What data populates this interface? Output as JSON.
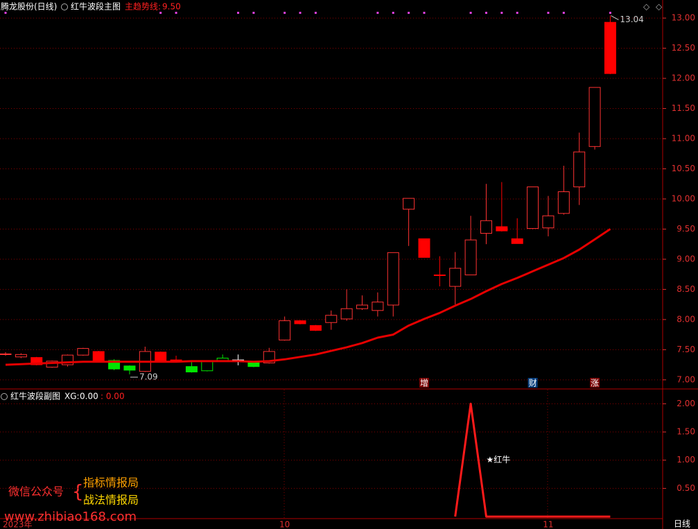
{
  "chart_data": [
    {
      "type": "candlestick",
      "stock": "腾龙股份(日线)",
      "title": "红牛波段主图",
      "categories": [
        "2023年",
        null,
        null,
        null,
        null,
        null,
        null,
        null,
        null,
        null,
        null,
        null,
        null,
        null,
        null,
        null,
        null,
        null,
        "10",
        null,
        null,
        null,
        null,
        null,
        null,
        null,
        null,
        null,
        null,
        null,
        null,
        null,
        null,
        null,
        null,
        "11",
        null,
        null,
        null,
        null
      ],
      "open": [
        7.43,
        7.38,
        7.37,
        7.21,
        7.25,
        7.41,
        7.47,
        7.32,
        7.23,
        7.14,
        7.46,
        7.33,
        7.22,
        7.15,
        7.31,
        7.33,
        7.3,
        7.28,
        7.66,
        7.98,
        7.9,
        7.95,
        8.01,
        8.18,
        8.15,
        8.24,
        9.83,
        9.34,
        8.74,
        8.55,
        8.74,
        9.43,
        9.54,
        9.34,
        9.51,
        9.52,
        9.76,
        10.2,
        10.87,
        12.93
      ],
      "high": [
        7.46,
        7.44,
        7.38,
        7.32,
        7.42,
        7.53,
        7.48,
        7.34,
        7.24,
        7.55,
        7.47,
        7.4,
        7.3,
        7.32,
        7.42,
        7.42,
        7.31,
        7.53,
        8.05,
        7.99,
        7.91,
        8.15,
        8.5,
        8.4,
        8.45,
        9.11,
        10.01,
        9.34,
        9.05,
        9.12,
        9.72,
        10.25,
        10.28,
        9.68,
        10.2,
        10.05,
        10.55,
        11.1,
        11.85,
        13.04
      ],
      "low": [
        7.4,
        7.36,
        7.24,
        7.2,
        7.22,
        7.4,
        7.29,
        7.16,
        7.09,
        7.13,
        7.3,
        7.29,
        7.12,
        7.14,
        7.3,
        7.24,
        7.21,
        7.27,
        7.65,
        7.92,
        7.81,
        7.83,
        7.98,
        8.16,
        8.05,
        8.05,
        9.22,
        9.03,
        8.55,
        8.25,
        8.74,
        9.25,
        9.46,
        9.26,
        9.5,
        9.38,
        9.74,
        9.9,
        10.82,
        12.07
      ],
      "close": [
        7.43,
        7.42,
        7.25,
        7.31,
        7.41,
        7.52,
        7.3,
        7.18,
        7.16,
        7.47,
        7.31,
        7.3,
        7.13,
        7.31,
        7.36,
        7.33,
        7.22,
        7.47,
        7.98,
        7.93,
        7.82,
        8.07,
        8.18,
        8.24,
        8.29,
        9.11,
        10.01,
        9.03,
        8.74,
        8.85,
        9.32,
        9.64,
        9.47,
        9.26,
        10.2,
        9.72,
        10.12,
        10.78,
        11.85,
        12.08
      ],
      "colors": [
        "#ff3232",
        "#ff3232",
        "#ff0000",
        "#ff3232",
        "#ff3232",
        "#ff3232",
        "#ff0000",
        "#00e600",
        "#00e600",
        "#ff3232",
        "#ff0000",
        "#ff0000",
        "#00e600",
        "#00e600",
        "#00e600",
        "#ffffff",
        "#00e600",
        "#ff3232",
        "#ff3232",
        "#ff0000",
        "#ff0000",
        "#ff3232",
        "#ff3232",
        "#ff3232",
        "#ff3232",
        "#ff3232",
        "#ff3232",
        "#ff0000",
        "#ff0000",
        "#ff3232",
        "#ff3232",
        "#ff3232",
        "#ff0000",
        "#ff0000",
        "#ff3232",
        "#ff3232",
        "#ff3232",
        "#ff3232",
        "#ff3232",
        "#ff0000"
      ],
      "filled": [
        false,
        false,
        true,
        false,
        false,
        false,
        true,
        true,
        true,
        false,
        true,
        true,
        true,
        false,
        false,
        false,
        true,
        false,
        false,
        true,
        true,
        false,
        false,
        false,
        false,
        false,
        false,
        true,
        true,
        false,
        false,
        false,
        true,
        true,
        false,
        false,
        false,
        false,
        false,
        true
      ],
      "series": [
        {
          "name": "主趋势线:",
          "color": "#e60000",
          "current_value": "9.50",
          "values": [
            7.25,
            7.26,
            7.27,
            7.28,
            7.29,
            7.3,
            7.3,
            7.3,
            7.3,
            7.3,
            7.3,
            7.3,
            7.31,
            7.31,
            7.31,
            7.31,
            7.3,
            7.31,
            7.34,
            7.38,
            7.42,
            7.48,
            7.54,
            7.61,
            7.7,
            7.75,
            7.9,
            8.01,
            8.11,
            8.23,
            8.34,
            8.47,
            8.59,
            8.69,
            8.8,
            8.91,
            9.02,
            9.16,
            9.33,
            9.5
          ]
        }
      ],
      "events": [
        null,
        null,
        null,
        null,
        null,
        null,
        null,
        null,
        null,
        null,
        null,
        null,
        null,
        null,
        null,
        null,
        null,
        null,
        null,
        null,
        null,
        null,
        null,
        null,
        null,
        null,
        null,
        "增",
        null,
        null,
        null,
        null,
        null,
        null,
        "财",
        null,
        null,
        null,
        "涨",
        null
      ],
      "ylim": [
        6.86,
        13.3
      ],
      "yticks": [
        {
          "value": 7,
          "label": "7.00"
        },
        {
          "value": 7.5,
          "label": "7.50"
        },
        {
          "value": 8,
          "label": "8.00"
        },
        {
          "value": 8.5,
          "label": "8.50"
        },
        {
          "value": 9,
          "label": "9.00"
        },
        {
          "value": 9.5,
          "label": "9.50"
        },
        {
          "value": 10,
          "label": "10.00"
        },
        {
          "value": 10.5,
          "label": "10.50"
        },
        {
          "value": 11,
          "label": "11.00"
        },
        {
          "value": 11.5,
          "label": "11.50"
        },
        {
          "value": 12,
          "label": "12.00"
        },
        {
          "value": 12.5,
          "label": "12.50"
        },
        {
          "value": 13,
          "label": "13.00"
        }
      ],
      "grid": true
    },
    {
      "type": "line",
      "title": "红牛波段副图",
      "series": [
        {
          "name": "XG:",
          "color": "#ff1a1a",
          "current_value": "0.00",
          "second_value": ": 0.00",
          "values": [
            null,
            null,
            null,
            null,
            null,
            null,
            null,
            null,
            null,
            null,
            null,
            null,
            null,
            null,
            null,
            null,
            null,
            null,
            null,
            null,
            null,
            null,
            null,
            null,
            null,
            null,
            null,
            null,
            null,
            0,
            2,
            0,
            0,
            0,
            0,
            0,
            0,
            0,
            0,
            0
          ]
        }
      ],
      "annotation": {
        "text": "★红牛",
        "index": 31,
        "value": 1
      },
      "ylim": [
        -0.06,
        2.25
      ],
      "yticks": [
        {
          "value": 0.5,
          "label": "0.50"
        },
        {
          "value": 1,
          "label": "1.00"
        },
        {
          "value": 1.5,
          "label": "1.50"
        },
        {
          "value": 2,
          "label": "2.00"
        }
      ],
      "grid": true
    }
  ],
  "watermark": {
    "account": "微信公众号",
    "names": [
      "指标情报局",
      "战法情报局"
    ],
    "url": "www.zhibiao168.com"
  },
  "period_button": "日线"
}
